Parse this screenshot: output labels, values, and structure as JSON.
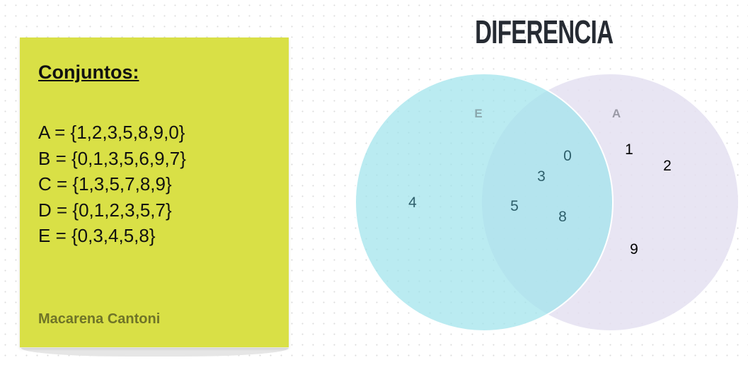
{
  "note": {
    "heading": "Conjuntos:",
    "sets": [
      "A = {1,2,3,5,8,9,0}",
      "B = {0,1,3,5,6,9,7}",
      "C = {1,3,5,7,8,9}",
      "D = {0,1,2,3,5,7}",
      "E = {0,3,4,5,8}"
    ],
    "author": "Macarena Cantoni",
    "color": "#d9e046"
  },
  "diagram": {
    "title": "DIFERENCIA",
    "left_set": {
      "label": "E",
      "color": "#a8e6ee",
      "only": [
        "4"
      ]
    },
    "right_set": {
      "label": "A",
      "color": "#e3dff0",
      "only": [
        "1",
        "2",
        "9"
      ]
    },
    "intersection": [
      "0",
      "3",
      "5",
      "8"
    ]
  }
}
